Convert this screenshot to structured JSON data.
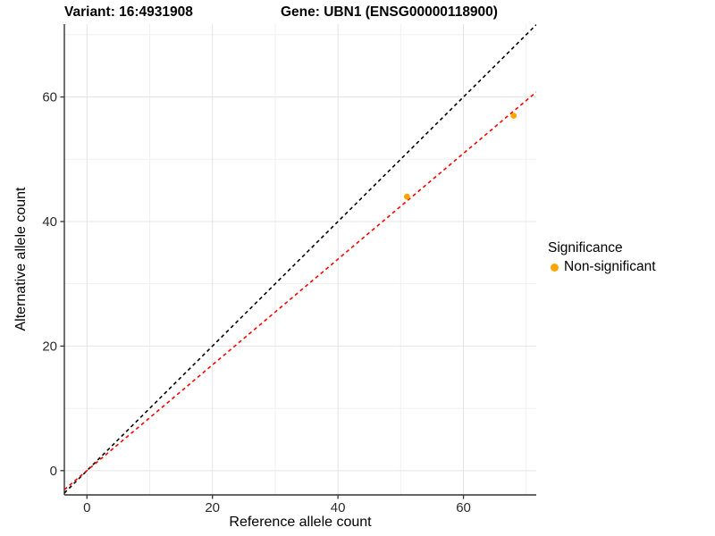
{
  "figure": {
    "title_left": "Variant: 16:4931908",
    "title_right": "Gene: UBN1 (ENSG00000118900)"
  },
  "chart_data": {
    "type": "scatter",
    "xlabel": "Reference allele count",
    "ylabel": "Alternative allele count",
    "xlim": [
      -3.6,
      71.6
    ],
    "ylim": [
      -3.9,
      71.7
    ],
    "xticks": [
      0,
      20,
      40,
      60
    ],
    "yticks": [
      0,
      20,
      40,
      60
    ],
    "xticks_minor": [
      10,
      30,
      50,
      70
    ],
    "yticks_minor": [
      10,
      30,
      50,
      70
    ],
    "grid": true,
    "series": [
      {
        "name": "Non-significant",
        "color": "#FFA500",
        "points": [
          {
            "x": 51,
            "y": 44
          },
          {
            "x": 68,
            "y": 57
          }
        ]
      }
    ],
    "reference_lines": [
      {
        "name": "identity-line",
        "slope": 1,
        "intercept": 0,
        "color": "#000000",
        "style": "dashed"
      },
      {
        "name": "fit-line",
        "slope": 0.849,
        "intercept": 0,
        "color": "#FF0000",
        "style": "dashed"
      }
    ],
    "legend": {
      "title": "Significance",
      "position": "right",
      "items": [
        {
          "label": "Non-significant",
          "color": "#FFA500"
        }
      ]
    }
  },
  "colors": {
    "grid_major": "#E4E4E4",
    "grid_minor": "#F1F1F1",
    "axis_line": "#333333",
    "tick_text": "#2B2B2B"
  }
}
